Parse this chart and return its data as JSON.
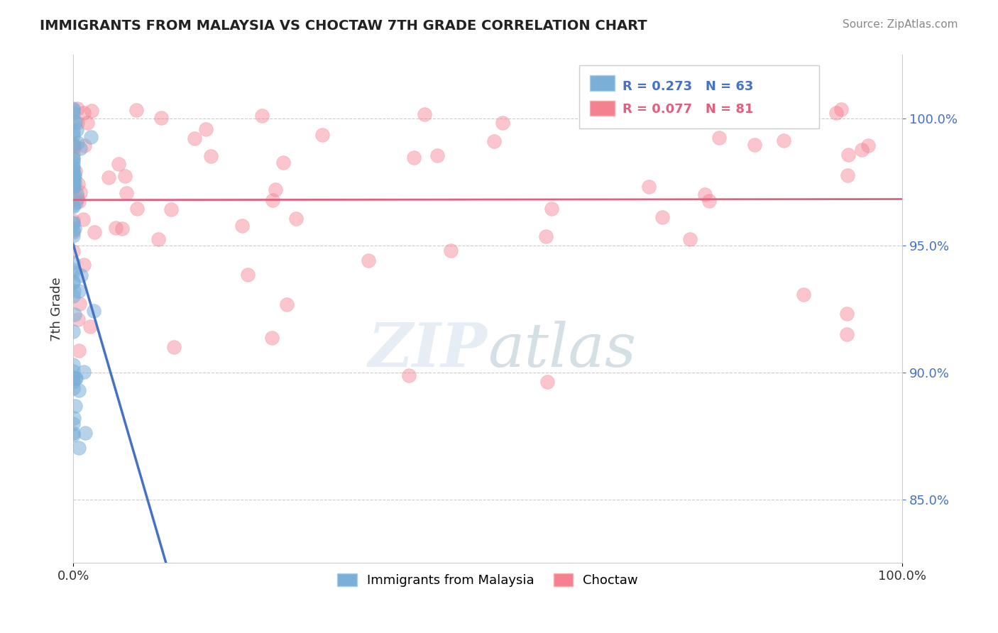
{
  "title": "IMMIGRANTS FROM MALAYSIA VS CHOCTAW 7TH GRADE CORRELATION CHART",
  "source": "Source: ZipAtlas.com",
  "ylabel": "7th Grade",
  "ytick_labels": [
    "85.0%",
    "90.0%",
    "95.0%",
    "100.0%"
  ],
  "ytick_values": [
    0.85,
    0.9,
    0.95,
    1.0
  ],
  "xlim": [
    0.0,
    1.0
  ],
  "ylim": [
    0.825,
    1.025
  ],
  "series1_name": "Immigrants from Malaysia",
  "series2_name": "Choctaw",
  "series1_color": "#7ab0d8",
  "series2_color": "#f48090",
  "series1_line_color": "#4472c4",
  "series2_line_color": "#e06080",
  "blue_R": 0.273,
  "blue_N": 63,
  "pink_R": 0.077,
  "pink_N": 81
}
